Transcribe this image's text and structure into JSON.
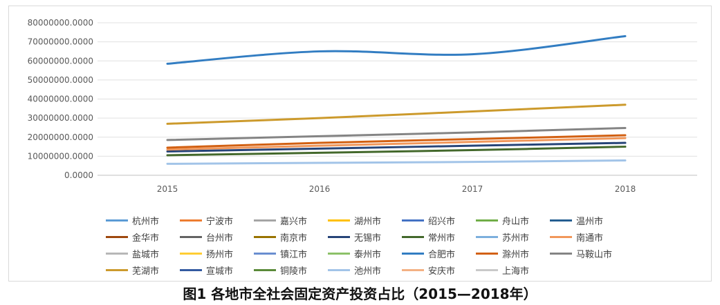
{
  "caption": "图1 各地市全社会固定资产投资占比（2015—2018年）",
  "chart_data": {
    "type": "line",
    "x": [
      "2015",
      "2016",
      "2017",
      "2018"
    ],
    "ylim": [
      0,
      80000000
    ],
    "yticks": [
      "0.0000",
      "10000000.0000",
      "20000000.0000",
      "30000000.0000",
      "40000000.0000",
      "50000000.0000",
      "60000000.0000",
      "70000000.0000",
      "80000000.0000"
    ],
    "grid": true,
    "legend_position": "bottom",
    "series": [
      {
        "name": "杭州市",
        "color": "#5b9bd5",
        "values": [
          null,
          null,
          null,
          null
        ]
      },
      {
        "name": "宁波市",
        "color": "#ed7d31",
        "values": [
          null,
          null,
          null,
          null
        ]
      },
      {
        "name": "嘉兴市",
        "color": "#a5a5a5",
        "values": [
          null,
          null,
          null,
          null
        ]
      },
      {
        "name": "湖州市",
        "color": "#ffc000",
        "values": [
          null,
          null,
          null,
          null
        ]
      },
      {
        "name": "绍兴市",
        "color": "#4472c4",
        "values": [
          null,
          null,
          null,
          null
        ]
      },
      {
        "name": "舟山市",
        "color": "#70ad47",
        "values": [
          null,
          null,
          null,
          null
        ]
      },
      {
        "name": "温州市",
        "color": "#255e91",
        "values": [
          null,
          null,
          null,
          null
        ]
      },
      {
        "name": "金华市",
        "color": "#9e480e",
        "values": [
          null,
          null,
          null,
          null
        ]
      },
      {
        "name": "台州市",
        "color": "#636363",
        "values": [
          null,
          null,
          null,
          null
        ]
      },
      {
        "name": "南京市",
        "color": "#997300",
        "values": [
          null,
          null,
          null,
          null
        ]
      },
      {
        "name": "无锡市",
        "color": "#264478",
        "values": [
          12500000,
          14000000,
          15500000,
          17000000
        ]
      },
      {
        "name": "常州市",
        "color": "#43682b",
        "values": [
          10500000,
          11800000,
          13200000,
          15000000
        ]
      },
      {
        "name": "苏州市",
        "color": "#7cafdd",
        "values": [
          null,
          null,
          null,
          null
        ]
      },
      {
        "name": "南通市",
        "color": "#f1975a",
        "values": [
          13500000,
          15500000,
          17500000,
          19500000
        ]
      },
      {
        "name": "盐城市",
        "color": "#b7b7b7",
        "values": [
          null,
          null,
          null,
          null
        ]
      },
      {
        "name": "扬州市",
        "color": "#ffcd33",
        "values": [
          null,
          null,
          null,
          null
        ]
      },
      {
        "name": "镇江市",
        "color": "#698ed0",
        "values": [
          null,
          null,
          null,
          null
        ]
      },
      {
        "name": "泰州市",
        "color": "#8cc168",
        "values": [
          null,
          null,
          null,
          null
        ]
      },
      {
        "name": "合肥市",
        "color": "#327dc2",
        "values": [
          58500000,
          65000000,
          63500000,
          73000000
        ]
      },
      {
        "name": "滁州市",
        "color": "#d26012",
        "values": [
          14500000,
          17000000,
          19000000,
          21000000
        ]
      },
      {
        "name": "马鞍山市",
        "color": "#848484",
        "values": [
          18500000,
          20500000,
          22500000,
          24800000
        ]
      },
      {
        "name": "芜湖市",
        "color": "#cc9a2c",
        "values": [
          27000000,
          30000000,
          33500000,
          37000000
        ]
      },
      {
        "name": "宣城市",
        "color": "#335aa1",
        "values": [
          null,
          null,
          null,
          null
        ]
      },
      {
        "name": "铜陵市",
        "color": "#5a8a39",
        "values": [
          null,
          null,
          null,
          null
        ]
      },
      {
        "name": "池州市",
        "color": "#a2c4e8",
        "values": [
          6000000,
          6500000,
          7000000,
          7800000
        ]
      },
      {
        "name": "安庆市",
        "color": "#f4b183",
        "values": [
          null,
          null,
          null,
          null
        ]
      },
      {
        "name": "上海市",
        "color": "#c9c9c9",
        "values": [
          null,
          null,
          null,
          null
        ]
      }
    ]
  }
}
